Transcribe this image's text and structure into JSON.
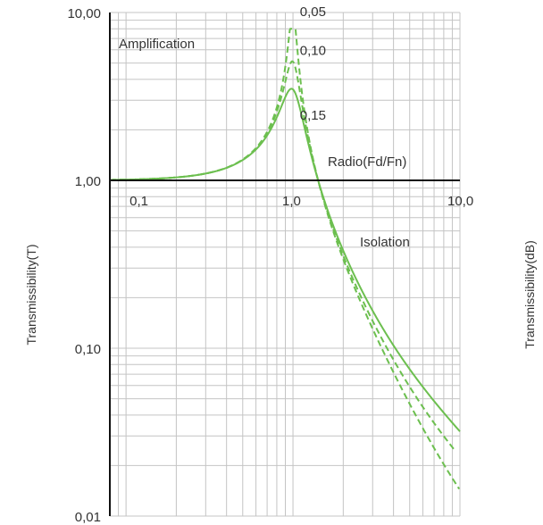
{
  "chart_data": {
    "type": "line",
    "x_scale": "log",
    "y_scale": "log",
    "xlim": [
      0.08,
      10
    ],
    "ylim": [
      0.01,
      10
    ],
    "grid": true,
    "x_tick_labels": [
      {
        "value": 0.1,
        "label": "0,1"
      },
      {
        "value": 1,
        "label": "1,0"
      },
      {
        "value": 10,
        "label": "10,0"
      }
    ],
    "y_tick_labels": [
      {
        "value": 10,
        "label": "10,00"
      },
      {
        "value": 1,
        "label": "1,00"
      },
      {
        "value": 0.1,
        "label": "0,10"
      },
      {
        "value": 0.01,
        "label": "0,01"
      }
    ],
    "ylabel_left": "Transmissibility(T)",
    "ylabel_right": "Transmissibility(dB)",
    "annotations": {
      "amplification": "Amplification",
      "isolation": "Isolation",
      "ratio": "Radio(Fd/Fn)"
    },
    "series": [
      {
        "name": "0,05",
        "damping": 0.05,
        "style": "dashed",
        "x_range": [
          0.08,
          9.9
        ],
        "label_at": [
          1.1,
          9.5
        ]
      },
      {
        "name": "0,10",
        "damping": 0.1,
        "style": "dashed",
        "x_range": [
          0.08,
          9.3
        ],
        "label_at": [
          1.1,
          5.6
        ]
      },
      {
        "name": "0,15",
        "damping": 0.15,
        "style": "solid",
        "x_range": [
          0.08,
          10
        ],
        "label_at": [
          1.1,
          2.3
        ]
      }
    ],
    "colors": {
      "curve": "#6cbf4f",
      "axis": "#111111",
      "grid": "#c4c4c4",
      "text": "#333333"
    }
  }
}
